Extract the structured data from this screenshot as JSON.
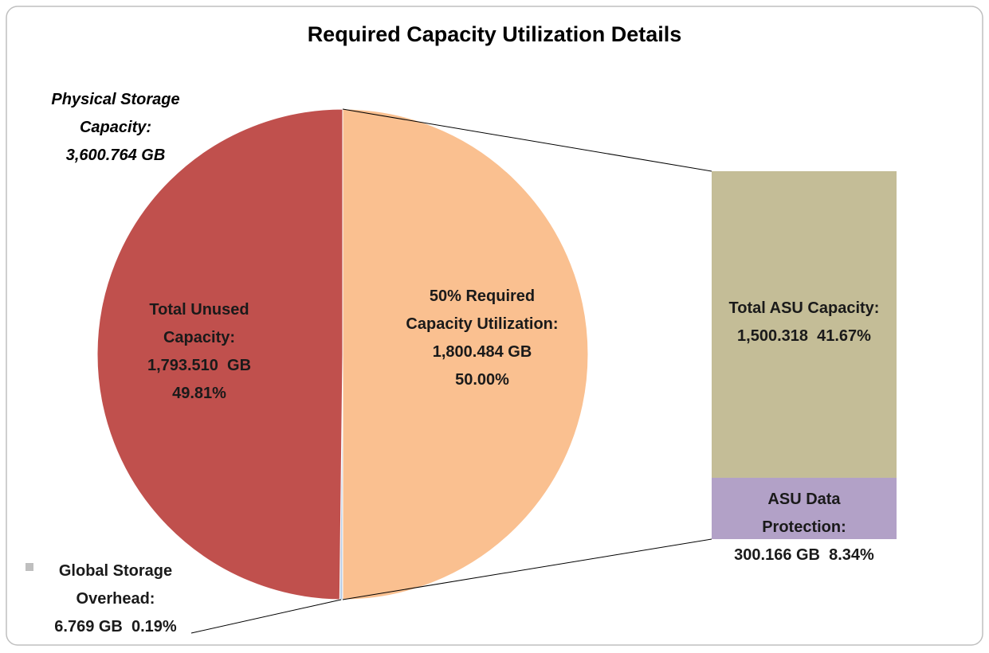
{
  "chart_data": {
    "type": "pie-of-bar",
    "title": "Required Capacity Utilization Details",
    "total_name": "Physical Storage Capacity:",
    "total": 3600.764,
    "total_label": "3,600.764 GB",
    "pie": {
      "categories": [
        "Total Unused Capacity:",
        "50% Required Capacity Utilization:",
        "Global Storage Overhead:"
      ],
      "values": [
        1793.51,
        1800.484,
        6.769
      ],
      "value_labels": [
        "1,793.510  GB",
        "1,800.484 GB",
        "6.769 GB"
      ],
      "percents": [
        49.81,
        50.0,
        0.19
      ],
      "percent_labels": [
        "49.81%",
        "50.00%",
        "0.19%"
      ],
      "colors": [
        "#c0504d",
        "#fac090",
        "#b9cde5"
      ]
    },
    "bar": {
      "categories": [
        "Total ASU Capacity:",
        "ASU Data Protection:"
      ],
      "values": [
        1500.318,
        300.166
      ],
      "value_labels": [
        "1,500.318",
        "300.166 GB"
      ],
      "percents": [
        41.67,
        8.34
      ],
      "percent_labels": [
        "41.67%",
        "8.34%"
      ],
      "colors": [
        "#c4bd97",
        "#b2a1c7"
      ]
    }
  }
}
